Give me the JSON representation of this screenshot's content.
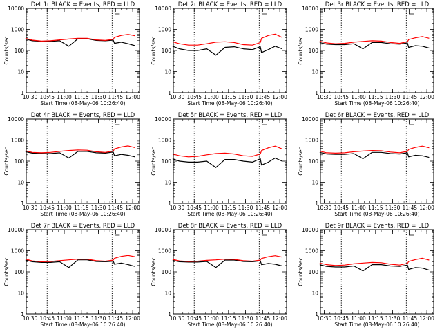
{
  "figure": {
    "x_tick_labels": [
      "10:30",
      "10:45",
      "11:00",
      "11:15",
      "11:30",
      "11:45",
      "12:00"
    ],
    "y_tick_labels": [
      "1",
      "10",
      "100",
      "1000",
      "10000"
    ],
    "ylabel": "Counts/sec",
    "xlabel": "Start Time (08-May-06 10:26:40)",
    "markers_x": [
      "10:45",
      "11:42"
    ],
    "colors": {
      "events": "#000000",
      "lld": "#ff0000",
      "markers": "#000000"
    }
  },
  "chart_data": [
    {
      "type": "line",
      "title": "Det 1r BLACK = Events, RED = LLD",
      "xlabel": "Start Time (08-May-06 10:26:40)",
      "ylabel": "Counts/sec",
      "ylim": [
        1,
        10000
      ],
      "y_scale": "log",
      "x": [
        "10:26",
        "10:32",
        "10:40",
        "10:48",
        "10:56",
        "11:04",
        "11:12",
        "11:20",
        "11:28",
        "11:36",
        "11:43",
        "11:44",
        "11:50",
        "11:56",
        "12:02"
      ],
      "series": [
        {
          "name": "BLACK = Events",
          "values": [
            350,
            290,
            270,
            270,
            290,
            160,
            360,
            360,
            300,
            290,
            310,
            220,
            250,
            210,
            170
          ]
        },
        {
          "name": "RED = LLD",
          "values": [
            380,
            310,
            280,
            290,
            320,
            350,
            380,
            380,
            320,
            300,
            340,
            420,
            520,
            580,
            500
          ]
        }
      ]
    },
    {
      "type": "line",
      "title": "Det 2r BLACK = Events, RED = LLD",
      "xlabel": "Start Time (08-May-06 10:26:40)",
      "ylabel": "Counts/sec",
      "ylim": [
        1,
        10000
      ],
      "y_scale": "log",
      "x": [
        "10:26",
        "10:32",
        "10:40",
        "10:48",
        "10:56",
        "11:04",
        "11:12",
        "11:20",
        "11:28",
        "11:36",
        "11:43",
        "11:44",
        "11:50",
        "11:56",
        "12:02"
      ],
      "series": [
        {
          "name": "BLACK = Events",
          "values": [
            160,
            120,
            100,
            100,
            120,
            60,
            140,
            150,
            120,
            110,
            150,
            80,
            110,
            160,
            120
          ]
        },
        {
          "name": "RED = LLD",
          "values": [
            260,
            210,
            180,
            180,
            210,
            250,
            260,
            240,
            190,
            180,
            240,
            380,
            520,
            600,
            420
          ]
        }
      ]
    },
    {
      "type": "line",
      "title": "Det 3r BLACK = Events, RED = LLD",
      "xlabel": "Start Time (08-May-06 10:26:40)",
      "ylabel": "Counts/sec",
      "ylim": [
        1,
        10000
      ],
      "y_scale": "log",
      "x": [
        "10:26",
        "10:32",
        "10:40",
        "10:48",
        "10:56",
        "11:04",
        "11:12",
        "11:20",
        "11:28",
        "11:36",
        "11:43",
        "11:44",
        "11:50",
        "11:56",
        "12:02"
      ],
      "series": [
        {
          "name": "BLACK = Events",
          "values": [
            240,
            200,
            190,
            190,
            210,
            120,
            240,
            240,
            210,
            200,
            230,
            140,
            170,
            160,
            130
          ]
        },
        {
          "name": "RED = LLD",
          "values": [
            280,
            230,
            210,
            220,
            250,
            270,
            290,
            280,
            240,
            220,
            260,
            330,
            400,
            460,
            380
          ]
        }
      ]
    },
    {
      "type": "line",
      "title": "Det 4r BLACK = Events, RED = LLD",
      "xlabel": "Start Time (08-May-06 10:26:40)",
      "ylabel": "Counts/sec",
      "ylim": [
        1,
        10000
      ],
      "y_scale": "log",
      "x": [
        "10:26",
        "10:32",
        "10:40",
        "10:48",
        "10:56",
        "11:04",
        "11:12",
        "11:20",
        "11:28",
        "11:36",
        "11:43",
        "11:44",
        "11:50",
        "11:56",
        "12:02"
      ],
      "series": [
        {
          "name": "BLACK = Events",
          "values": [
            280,
            240,
            230,
            230,
            250,
            140,
            290,
            290,
            250,
            240,
            270,
            180,
            210,
            190,
            160
          ]
        },
        {
          "name": "RED = LLD",
          "values": [
            310,
            260,
            250,
            260,
            290,
            320,
            340,
            330,
            280,
            260,
            300,
            380,
            470,
            530,
            440
          ]
        }
      ]
    },
    {
      "type": "line",
      "title": "Det 5r BLACK = Events, RED = LLD",
      "xlabel": "Start Time (08-May-06 10:26:40)",
      "ylabel": "Counts/sec",
      "ylim": [
        1,
        10000
      ],
      "y_scale": "log",
      "x": [
        "10:26",
        "10:32",
        "10:40",
        "10:48",
        "10:56",
        "11:04",
        "11:12",
        "11:20",
        "11:28",
        "11:36",
        "11:43",
        "11:44",
        "11:50",
        "11:56",
        "12:02"
      ],
      "series": [
        {
          "name": "BLACK = Events",
          "values": [
            130,
            100,
            90,
            90,
            100,
            50,
            120,
            120,
            100,
            90,
            130,
            65,
            90,
            140,
            100
          ]
        },
        {
          "name": "RED = LLD",
          "values": [
            220,
            180,
            160,
            170,
            200,
            230,
            240,
            220,
            180,
            170,
            220,
            320,
            430,
            520,
            380
          ]
        }
      ]
    },
    {
      "type": "line",
      "title": "Det 6r BLACK = Events, RED = LLD",
      "xlabel": "Start Time (08-May-06 10:26:40)",
      "ylabel": "Counts/sec",
      "ylim": [
        1,
        10000
      ],
      "y_scale": "log",
      "x": [
        "10:26",
        "10:32",
        "10:40",
        "10:48",
        "10:56",
        "11:04",
        "11:12",
        "11:20",
        "11:28",
        "11:36",
        "11:43",
        "11:44",
        "11:50",
        "11:56",
        "12:02"
      ],
      "series": [
        {
          "name": "BLACK = Events",
          "values": [
            260,
            220,
            210,
            210,
            230,
            130,
            260,
            260,
            230,
            220,
            250,
            160,
            190,
            180,
            150
          ]
        },
        {
          "name": "RED = LLD",
          "values": [
            300,
            250,
            240,
            250,
            280,
            300,
            320,
            310,
            270,
            250,
            290,
            360,
            450,
            520,
            430
          ]
        }
      ]
    },
    {
      "type": "line",
      "title": "Det 7r BLACK = Events, RED = LLD",
      "xlabel": "Start Time (08-May-06 10:26:40)",
      "ylabel": "Counts/sec",
      "ylim": [
        1,
        10000
      ],
      "y_scale": "log",
      "x": [
        "10:26",
        "10:32",
        "10:40",
        "10:48",
        "10:56",
        "11:04",
        "11:12",
        "11:20",
        "11:28",
        "11:36",
        "11:43",
        "11:44",
        "11:50",
        "11:56",
        "12:02"
      ],
      "series": [
        {
          "name": "BLACK = Events",
          "values": [
            360,
            300,
            280,
            280,
            300,
            160,
            370,
            370,
            310,
            300,
            320,
            230,
            260,
            220,
            180
          ]
        },
        {
          "name": "RED = LLD",
          "values": [
            400,
            330,
            300,
            310,
            340,
            370,
            400,
            400,
            340,
            320,
            360,
            440,
            540,
            600,
            520
          ]
        }
      ]
    },
    {
      "type": "line",
      "title": "Det 8r BLACK = Events, RED = LLD",
      "xlabel": "Start Time (08-May-06 10:26:40)",
      "ylabel": "Counts/sec",
      "ylim": [
        1,
        10000
      ],
      "y_scale": "log",
      "x": [
        "10:26",
        "10:32",
        "10:40",
        "10:48",
        "10:56",
        "11:04",
        "11:12",
        "11:20",
        "11:28",
        "11:36",
        "11:43",
        "11:44",
        "11:50",
        "11:56",
        "12:02"
      ],
      "series": [
        {
          "name": "BLACK = Events",
          "values": [
            350,
            300,
            290,
            290,
            310,
            160,
            360,
            360,
            310,
            300,
            330,
            220,
            250,
            230,
            190
          ]
        },
        {
          "name": "RED = LLD",
          "values": [
            390,
            330,
            310,
            320,
            350,
            370,
            400,
            390,
            340,
            320,
            360,
            430,
            520,
            580,
            500
          ]
        }
      ]
    },
    {
      "type": "line",
      "title": "Det 9r BLACK = Events, RED = LLD",
      "xlabel": "Start Time (08-May-06 10:26:40)",
      "ylabel": "Counts/sec",
      "ylim": [
        1,
        10000
      ],
      "y_scale": "log",
      "x": [
        "10:26",
        "10:32",
        "10:40",
        "10:48",
        "10:56",
        "11:04",
        "11:12",
        "11:20",
        "11:28",
        "11:36",
        "11:43",
        "11:44",
        "11:50",
        "11:56",
        "12:02"
      ],
      "series": [
        {
          "name": "BLACK = Events",
          "values": [
            220,
            180,
            170,
            170,
            190,
            110,
            220,
            220,
            190,
            180,
            210,
            130,
            160,
            150,
            120
          ]
        },
        {
          "name": "RED = LLD",
          "values": [
            260,
            220,
            200,
            210,
            240,
            260,
            280,
            270,
            230,
            210,
            250,
            310,
            380,
            440,
            360
          ]
        }
      ]
    }
  ]
}
